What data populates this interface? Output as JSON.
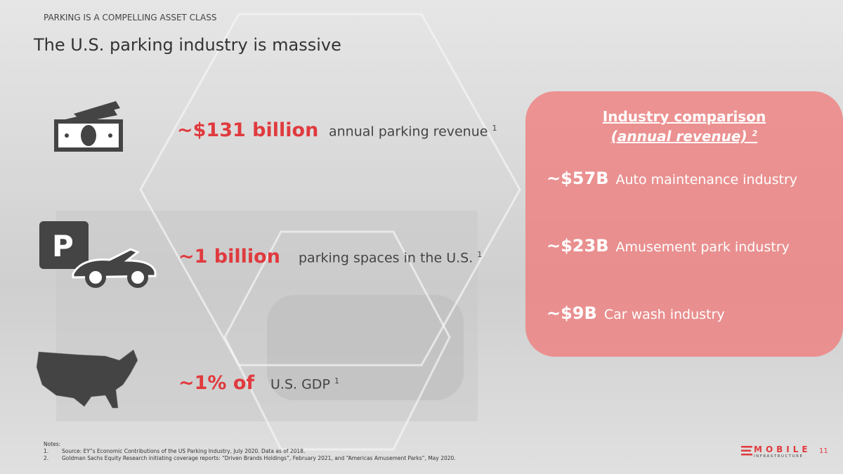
{
  "kicker": "PARKING IS A COMPELLING ASSET CLASS",
  "title": "The U.S. parking industry is massive",
  "stats": [
    {
      "value": "~$131 billion",
      "label": "annual parking revenue",
      "sup": "1",
      "icon": "money-icon"
    },
    {
      "value": "~1 billion",
      "label": "parking spaces in the U.S.",
      "sup": "1",
      "icon": "parking-car-icon"
    },
    {
      "value": "~1% of",
      "label": "U.S. GDP",
      "sup": "1",
      "icon": "us-map-icon"
    }
  ],
  "comparison": {
    "heading1": "Industry comparison",
    "heading2": "(annual revenue)",
    "sup": "2",
    "rows": [
      {
        "value": "~$57B",
        "label": "Auto maintenance industry"
      },
      {
        "value": "~$23B",
        "label": "Amusement park industry"
      },
      {
        "value": "~$9B",
        "label": "Car wash industry"
      }
    ]
  },
  "notes": {
    "title": "Notes:",
    "items": [
      {
        "num": "1.",
        "text": "Source: EY”s Economic Contributions of the US Parking Industry, July 2020. Data as of 2018."
      },
      {
        "num": "2.",
        "text": "Goldman Sachs Equity Research initiating coverage reports: “Driven Brands Holdings”, February 2021, and “Americas Amusement Parks”, May 2020."
      }
    ]
  },
  "logo": {
    "name": "MOBILE",
    "sub": "INFRASTRUCTURE"
  },
  "page_number": "11",
  "colors": {
    "accent": "#e03a3e",
    "box": "#f07878"
  }
}
